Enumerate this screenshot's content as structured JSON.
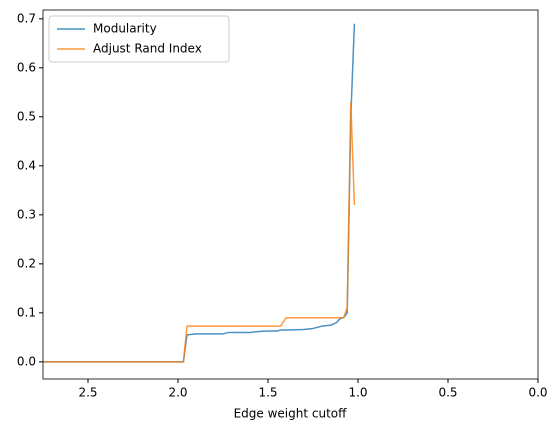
{
  "chart_data": {
    "type": "line",
    "xlabel": "Edge weight cutoff",
    "x": [
      2.75,
      2.7,
      2.5,
      2.3,
      2.1,
      1.97,
      1.95,
      1.9,
      1.8,
      1.75,
      1.72,
      1.6,
      1.55,
      1.5,
      1.45,
      1.43,
      1.4,
      1.3,
      1.25,
      1.2,
      1.15,
      1.12,
      1.1,
      1.08,
      1.06,
      1.04,
      1.02
    ],
    "series": [
      {
        "name": "Modularity",
        "color": "#1f77b4",
        "values": [
          0,
          0,
          0,
          0,
          0,
          0,
          0.055,
          0.057,
          0.057,
          0.057,
          0.06,
          0.06,
          0.062,
          0.063,
          0.063,
          0.065,
          0.065,
          0.066,
          0.068,
          0.073,
          0.075,
          0.08,
          0.088,
          0.09,
          0.1,
          0.5,
          0.69
        ]
      },
      {
        "name": "Adjust Rand Index",
        "color": "#ff7f0e",
        "values": [
          0,
          0,
          0,
          0,
          0,
          0,
          0.073,
          0.073,
          0.073,
          0.073,
          0.073,
          0.073,
          0.073,
          0.073,
          0.073,
          0.073,
          0.09,
          0.09,
          0.09,
          0.09,
          0.09,
          0.09,
          0.09,
          0.09,
          0.11,
          0.53,
          0.32
        ]
      }
    ],
    "xlim": [
      2.75,
      0
    ],
    "xticks": [
      2.5,
      {
        "value": 2,
        "label": "2.0"
      },
      1.5,
      {
        "value": 1,
        "label": "1.0"
      },
      0.5,
      {
        "value": 0,
        "label": "0.0"
      }
    ],
    "ylim": [
      -0.035,
      0.718
    ],
    "yticks": [
      {
        "value": 0,
        "label": "0.0"
      },
      0.1,
      0.2,
      0.3,
      0.4,
      0.5,
      0.6,
      0.7
    ],
    "grid": false,
    "legend": "upper-left"
  }
}
